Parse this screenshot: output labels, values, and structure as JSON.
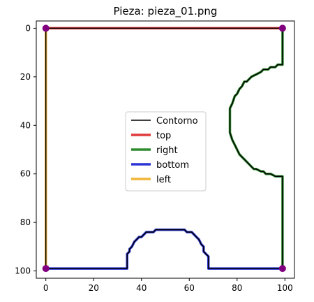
{
  "chart_data": {
    "type": "line",
    "title": "Pieza: pieza_01.png",
    "xlabel": "",
    "ylabel": "",
    "xlim": [
      -4,
      104
    ],
    "ylim": [
      103,
      -3
    ],
    "y_inverted": true,
    "x_ticks": [
      0,
      20,
      40,
      60,
      80,
      100
    ],
    "y_ticks": [
      0,
      20,
      40,
      60,
      80,
      100
    ],
    "legend_position": "center",
    "corners": {
      "color": "#800080",
      "points": [
        [
          0,
          0
        ],
        [
          99,
          0
        ],
        [
          99,
          99
        ],
        [
          0,
          99
        ]
      ]
    },
    "series": [
      {
        "name": "Contorno",
        "color": "#000000",
        "width": 1.5,
        "points": [
          [
            0,
            0
          ],
          [
            99,
            0
          ],
          [
            99,
            15
          ],
          [
            97,
            15
          ],
          [
            96,
            16
          ],
          [
            94,
            16
          ],
          [
            93,
            17
          ],
          [
            91,
            17
          ],
          [
            90,
            18
          ],
          [
            88,
            19
          ],
          [
            86,
            20
          ],
          [
            85,
            21
          ],
          [
            84,
            22
          ],
          [
            83,
            22
          ],
          [
            82,
            24
          ],
          [
            81,
            25
          ],
          [
            80,
            27
          ],
          [
            79,
            28
          ],
          [
            78,
            31
          ],
          [
            77,
            33
          ],
          [
            77,
            43
          ],
          [
            78,
            46
          ],
          [
            79,
            48
          ],
          [
            80,
            50
          ],
          [
            81,
            52
          ],
          [
            82,
            53
          ],
          [
            83,
            54
          ],
          [
            84,
            55
          ],
          [
            85,
            56
          ],
          [
            86,
            57
          ],
          [
            87,
            58
          ],
          [
            88,
            58
          ],
          [
            90,
            59
          ],
          [
            91,
            59
          ],
          [
            92,
            60
          ],
          [
            94,
            60
          ],
          [
            96,
            61
          ],
          [
            99,
            61
          ],
          [
            99,
            99
          ],
          [
            68,
            99
          ],
          [
            68,
            94
          ],
          [
            67,
            93
          ],
          [
            66,
            92
          ],
          [
            66,
            90
          ],
          [
            65,
            89
          ],
          [
            64,
            87
          ],
          [
            63,
            86
          ],
          [
            62,
            85
          ],
          [
            61,
            84
          ],
          [
            60,
            84
          ],
          [
            59,
            84
          ],
          [
            58,
            83
          ],
          [
            56,
            83
          ],
          [
            54,
            83
          ],
          [
            52,
            83
          ],
          [
            50,
            83
          ],
          [
            48,
            83
          ],
          [
            46,
            83
          ],
          [
            45,
            84
          ],
          [
            44,
            84
          ],
          [
            42,
            84
          ],
          [
            41,
            85
          ],
          [
            40,
            86
          ],
          [
            39,
            86
          ],
          [
            38,
            87
          ],
          [
            37,
            88
          ],
          [
            36,
            90
          ],
          [
            35,
            91
          ],
          [
            35,
            92
          ],
          [
            34,
            93
          ],
          [
            34,
            99
          ],
          [
            0,
            99
          ],
          [
            0,
            0
          ]
        ]
      },
      {
        "name": "top",
        "color": "#e03b3b",
        "width": 3.5,
        "points": [
          [
            0,
            0
          ],
          [
            99,
            0
          ]
        ]
      },
      {
        "name": "right",
        "color": "#2e8b2e",
        "width": 3.5,
        "points": [
          [
            99,
            0
          ],
          [
            99,
            15
          ],
          [
            97,
            15
          ],
          [
            96,
            16
          ],
          [
            94,
            16
          ],
          [
            93,
            17
          ],
          [
            91,
            17
          ],
          [
            90,
            18
          ],
          [
            88,
            19
          ],
          [
            86,
            20
          ],
          [
            85,
            21
          ],
          [
            84,
            22
          ],
          [
            83,
            22
          ],
          [
            82,
            24
          ],
          [
            81,
            25
          ],
          [
            80,
            27
          ],
          [
            79,
            28
          ],
          [
            78,
            31
          ],
          [
            77,
            33
          ],
          [
            77,
            43
          ],
          [
            78,
            46
          ],
          [
            79,
            48
          ],
          [
            80,
            50
          ],
          [
            81,
            52
          ],
          [
            82,
            53
          ],
          [
            83,
            54
          ],
          [
            84,
            55
          ],
          [
            85,
            56
          ],
          [
            86,
            57
          ],
          [
            87,
            58
          ],
          [
            88,
            58
          ],
          [
            90,
            59
          ],
          [
            91,
            59
          ],
          [
            92,
            60
          ],
          [
            94,
            60
          ],
          [
            96,
            61
          ],
          [
            99,
            61
          ],
          [
            99,
            99
          ]
        ]
      },
      {
        "name": "bottom",
        "color": "#2b35d4",
        "width": 3.5,
        "points": [
          [
            99,
            99
          ],
          [
            68,
            99
          ],
          [
            68,
            94
          ],
          [
            67,
            93
          ],
          [
            66,
            92
          ],
          [
            66,
            90
          ],
          [
            65,
            89
          ],
          [
            64,
            87
          ],
          [
            63,
            86
          ],
          [
            62,
            85
          ],
          [
            61,
            84
          ],
          [
            60,
            84
          ],
          [
            59,
            84
          ],
          [
            58,
            83
          ],
          [
            56,
            83
          ],
          [
            54,
            83
          ],
          [
            52,
            83
          ],
          [
            50,
            83
          ],
          [
            48,
            83
          ],
          [
            46,
            83
          ],
          [
            45,
            84
          ],
          [
            44,
            84
          ],
          [
            42,
            84
          ],
          [
            41,
            85
          ],
          [
            40,
            86
          ],
          [
            39,
            86
          ],
          [
            38,
            87
          ],
          [
            37,
            88
          ],
          [
            36,
            90
          ],
          [
            35,
            91
          ],
          [
            35,
            92
          ],
          [
            34,
            93
          ],
          [
            34,
            99
          ],
          [
            0,
            99
          ]
        ]
      },
      {
        "name": "left",
        "color": "#f0b63a",
        "width": 3.5,
        "points": [
          [
            0,
            99
          ],
          [
            0,
            0
          ]
        ]
      }
    ]
  }
}
